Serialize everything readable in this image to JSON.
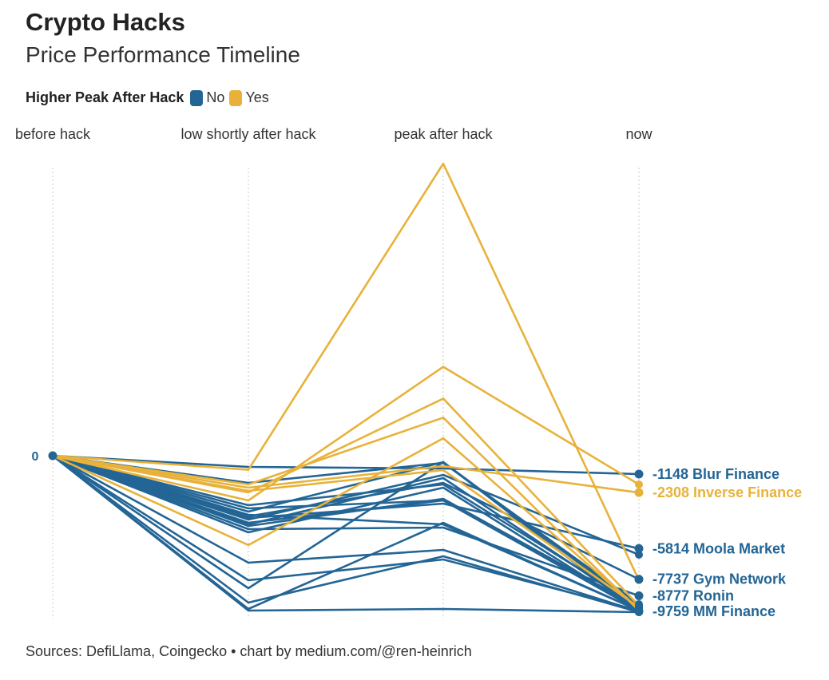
{
  "header": {
    "title": "Crypto Hacks",
    "subtitle": "Price Performance Timeline"
  },
  "legend": {
    "title": "Higher Peak After Hack",
    "items": [
      {
        "label": "No",
        "color": "#236595"
      },
      {
        "label": "Yes",
        "color": "#E8B23A"
      }
    ]
  },
  "footer": {
    "source": "Sources: DefiLlama, Coingecko • chart by medium.com/@ren-heinrich"
  },
  "chart_data": {
    "type": "line",
    "chart_style": "parallel-coordinates / slope chart",
    "x": [
      "before hack",
      "low shortly after hack",
      "peak after hack",
      "now"
    ],
    "y_tick_labels": [
      "0"
    ],
    "ylim": [
      -10000,
      19000
    ],
    "grid": "vertical dotted lines at each stage",
    "legend_placement": "top-left",
    "colors": {
      "No": "#236595",
      "Yes": "#E8B23A"
    },
    "series": [
      {
        "group": "Yes",
        "values": [
          0,
          -880,
          18400,
          -7800
        ]
      },
      {
        "group": "Yes",
        "values": [
          0,
          -2800,
          5600,
          -1800
        ]
      },
      {
        "group": "Yes",
        "values": [
          0,
          -2300,
          3600,
          -9400
        ]
      },
      {
        "group": "Yes",
        "values": [
          0,
          -1800,
          2400,
          -9700
        ]
      },
      {
        "group": "Yes",
        "values": [
          0,
          -5600,
          1100,
          -9600
        ]
      },
      {
        "group": "Yes",
        "values": [
          0,
          -2200,
          -900,
          -9500
        ]
      },
      {
        "group": "Yes",
        "values": [
          0,
          -2000,
          -650,
          -2308
        ]
      },
      {
        "group": "No",
        "values": [
          0,
          -700,
          -800,
          -1148
        ]
      },
      {
        "group": "No",
        "values": [
          0,
          -1700,
          -450,
          -9300
        ]
      },
      {
        "group": "No",
        "values": [
          0,
          -3500,
          -400,
          -9500
        ]
      },
      {
        "group": "No",
        "values": [
          0,
          -4000,
          -1200,
          -6200
        ]
      },
      {
        "group": "No",
        "values": [
          0,
          -4300,
          -1400,
          -9600
        ]
      },
      {
        "group": "No",
        "values": [
          0,
          -3300,
          -2800,
          -9700
        ]
      },
      {
        "group": "No",
        "values": [
          0,
          -3900,
          -3000,
          -5814
        ]
      },
      {
        "group": "No",
        "values": [
          0,
          -3800,
          -1700,
          -7737
        ]
      },
      {
        "group": "No",
        "values": [
          0,
          -4600,
          -4500,
          -8777
        ]
      },
      {
        "group": "No",
        "values": [
          0,
          -4800,
          -2000,
          -9700
        ]
      },
      {
        "group": "No",
        "values": [
          0,
          -6700,
          -5900,
          -9759
        ]
      },
      {
        "group": "No",
        "values": [
          0,
          -8300,
          -400,
          -9800
        ]
      },
      {
        "group": "No",
        "values": [
          0,
          -9200,
          -6300,
          -9800
        ]
      },
      {
        "group": "No",
        "values": [
          0,
          -9700,
          -9600,
          -9800
        ]
      },
      {
        "group": "No",
        "values": [
          0,
          -7800,
          -6500,
          -9700
        ]
      },
      {
        "group": "No",
        "values": [
          0,
          -4200,
          -2800,
          -9600
        ]
      },
      {
        "group": "No",
        "values": [
          0,
          -4400,
          -2700,
          -9500
        ]
      },
      {
        "group": "No",
        "values": [
          0,
          -3700,
          -4300,
          -9700
        ]
      },
      {
        "group": "No",
        "values": [
          0,
          -3100,
          -1800,
          -9400
        ]
      },
      {
        "group": "No",
        "values": [
          0,
          -9600,
          -4200,
          -9700
        ]
      }
    ],
    "annotations": [
      {
        "label": "-1148 Blur Finance",
        "value": -1148,
        "group": "No"
      },
      {
        "label": "-2308 Inverse Finance",
        "value": -2308,
        "group": "Yes"
      },
      {
        "label": "-5814 Moola Market",
        "value": -5814,
        "group": "No"
      },
      {
        "label": "-7737 Gym Network",
        "value": -7737,
        "group": "No"
      },
      {
        "label": "-8777 Ronin",
        "value": -8777,
        "group": "No"
      },
      {
        "label": "-9759 MM Finance",
        "value": -9759,
        "group": "No"
      }
    ]
  }
}
